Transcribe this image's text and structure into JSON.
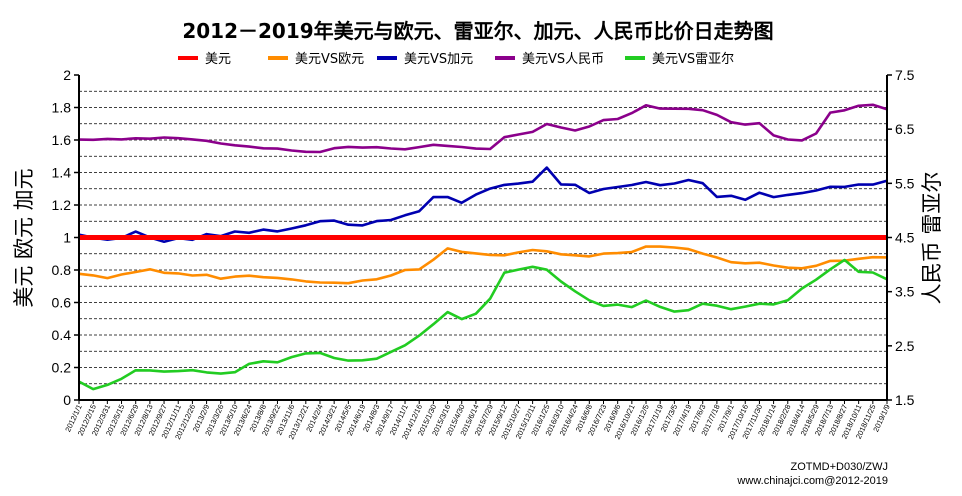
{
  "chart_data": {
    "type": "line",
    "title": "2012－2019年美元与欧元、雷亚尔、加元、人民币比价日走势图",
    "legend_position": "top",
    "left_axis": {
      "label": "美元 欧元 加元",
      "ylim": [
        0,
        2
      ],
      "ticks": [
        "0",
        "0.2",
        "0.4",
        "0.6",
        "0.8",
        "1",
        "1.2",
        "1.4",
        "1.6",
        "1.8",
        "2"
      ]
    },
    "right_axis": {
      "label": "人民币 雷亚尔",
      "ylim": [
        1.5,
        7.5
      ],
      "ticks": [
        "1.5",
        "2.5",
        "3.5",
        "4.5",
        "5.5",
        "6.5",
        "7.5"
      ]
    },
    "grid": "horizontal dashed",
    "x_labels": [
      "2012/1/1",
      "2012/2/15",
      "2012/3/31",
      "2012/5/15",
      "2012/6/29",
      "2012/8/13",
      "2012/9/27",
      "2012/11/11",
      "2012/12/26",
      "2013/2/9",
      "2013/3/26",
      "2013/5/10",
      "2013/6/24",
      "2013/8/8",
      "2013/9/22",
      "2013/11/6",
      "2013/12/21",
      "2014/2/4",
      "2014/3/21",
      "2014/5/5",
      "2014/6/19",
      "2014/8/3",
      "2014/9/17",
      "2014/11/1",
      "2014/12/16",
      "2015/1/30",
      "2015/3/16",
      "2015/4/30",
      "2015/6/14",
      "2015/7/29",
      "2015/9/12",
      "2015/10/27",
      "2015/12/11",
      "2016/1/25",
      "2016/3/10",
      "2016/4/24",
      "2016/6/8",
      "2016/7/23",
      "2016/9/6",
      "2016/10/21",
      "2016/12/5",
      "2017/1/19",
      "2017/3/5",
      "2017/4/19",
      "2017/6/3",
      "2017/7/18",
      "2017/9/1",
      "2017/10/16",
      "2017/11/30",
      "2018/1/14",
      "2018/2/28",
      "2018/4/14",
      "2018/5/29",
      "2018/7/13",
      "2018/8/27",
      "2018/10/11",
      "2018/11/25",
      "2019/1/9"
    ],
    "series": [
      {
        "name": "美元",
        "axis": "left",
        "color": "#ff0000",
        "values": [
          1,
          1,
          1,
          1,
          1,
          1,
          1,
          1,
          1,
          1,
          1,
          1,
          1,
          1,
          1,
          1,
          1,
          1,
          1,
          1,
          1,
          1,
          1,
          1,
          1,
          1,
          1,
          1,
          1,
          1,
          1,
          1,
          1,
          1,
          1,
          1,
          1,
          1,
          1,
          1,
          1,
          1,
          1,
          1,
          1,
          1,
          1,
          1,
          1,
          1,
          1,
          1,
          1,
          1,
          1,
          1,
          1,
          1
        ]
      },
      {
        "name": "美元VS欧元",
        "axis": "left",
        "color": "#ff8c00",
        "values": [
          0.78,
          0.76,
          0.75,
          0.77,
          0.79,
          0.81,
          0.78,
          0.78,
          0.76,
          0.77,
          0.75,
          0.76,
          0.77,
          0.75,
          0.75,
          0.74,
          0.73,
          0.73,
          0.72,
          0.72,
          0.73,
          0.74,
          0.77,
          0.8,
          0.81,
          0.86,
          0.93,
          0.91,
          0.9,
          0.9,
          0.89,
          0.91,
          0.92,
          0.91,
          0.9,
          0.89,
          0.89,
          0.9,
          0.9,
          0.91,
          0.94,
          0.95,
          0.94,
          0.93,
          0.9,
          0.87,
          0.85,
          0.84,
          0.85,
          0.83,
          0.81,
          0.81,
          0.82,
          0.86,
          0.86,
          0.87,
          0.88,
          0.87
        ]
      },
      {
        "name": "美元VS加元",
        "axis": "left",
        "color": "#0000b0",
        "values": [
          1.02,
          1.0,
          0.99,
          1.0,
          1.03,
          1.0,
          0.97,
          1.0,
          0.99,
          1.02,
          1.01,
          1.03,
          1.03,
          1.05,
          1.04,
          1.06,
          1.07,
          1.1,
          1.1,
          1.08,
          1.08,
          1.1,
          1.11,
          1.13,
          1.16,
          1.25,
          1.25,
          1.22,
          1.26,
          1.3,
          1.32,
          1.33,
          1.35,
          1.43,
          1.33,
          1.32,
          1.27,
          1.3,
          1.31,
          1.33,
          1.34,
          1.32,
          1.33,
          1.35,
          1.34,
          1.25,
          1.26,
          1.23,
          1.27,
          1.25,
          1.26,
          1.28,
          1.29,
          1.31,
          1.31,
          1.32,
          1.33,
          1.35
        ]
      },
      {
        "name": "美元VS人民币",
        "axis": "right",
        "color": "#8b008b",
        "values": [
          6.31,
          6.3,
          6.3,
          6.32,
          6.33,
          6.34,
          6.35,
          6.32,
          6.31,
          6.27,
          6.25,
          6.21,
          6.18,
          6.15,
          6.12,
          6.11,
          6.08,
          6.09,
          6.16,
          6.16,
          6.16,
          6.15,
          6.15,
          6.14,
          6.17,
          6.22,
          6.17,
          6.17,
          6.14,
          6.14,
          6.37,
          6.39,
          6.45,
          6.58,
          6.53,
          6.49,
          6.55,
          6.68,
          6.67,
          6.79,
          6.94,
          6.88,
          6.9,
          6.87,
          6.85,
          6.75,
          6.62,
          6.6,
          6.61,
          6.4,
          6.3,
          6.28,
          6.42,
          6.8,
          6.87,
          6.93,
          6.95,
          6.86
        ]
      },
      {
        "name": "美元VS雷亚尔",
        "axis": "right",
        "color": "#22cc22",
        "values": [
          1.83,
          1.72,
          1.78,
          1.9,
          2.04,
          2.03,
          2.03,
          2.03,
          2.07,
          2.01,
          1.98,
          2.01,
          2.15,
          2.23,
          2.2,
          2.3,
          2.36,
          2.35,
          2.28,
          2.22,
          2.25,
          2.27,
          2.38,
          2.51,
          2.67,
          2.91,
          3.13,
          3.0,
          3.1,
          3.35,
          3.85,
          3.9,
          3.97,
          3.92,
          3.68,
          3.51,
          3.32,
          3.24,
          3.27,
          3.22,
          3.35,
          3.2,
          3.13,
          3.15,
          3.28,
          3.26,
          3.17,
          3.23,
          3.26,
          3.26,
          3.35,
          3.56,
          3.74,
          3.9,
          4.08,
          3.86,
          3.85,
          3.75
        ]
      }
    ]
  },
  "credits": {
    "line1": "ZOTMD+D030/ZWJ",
    "line2": "www.chinajci.com@2012-2019"
  }
}
